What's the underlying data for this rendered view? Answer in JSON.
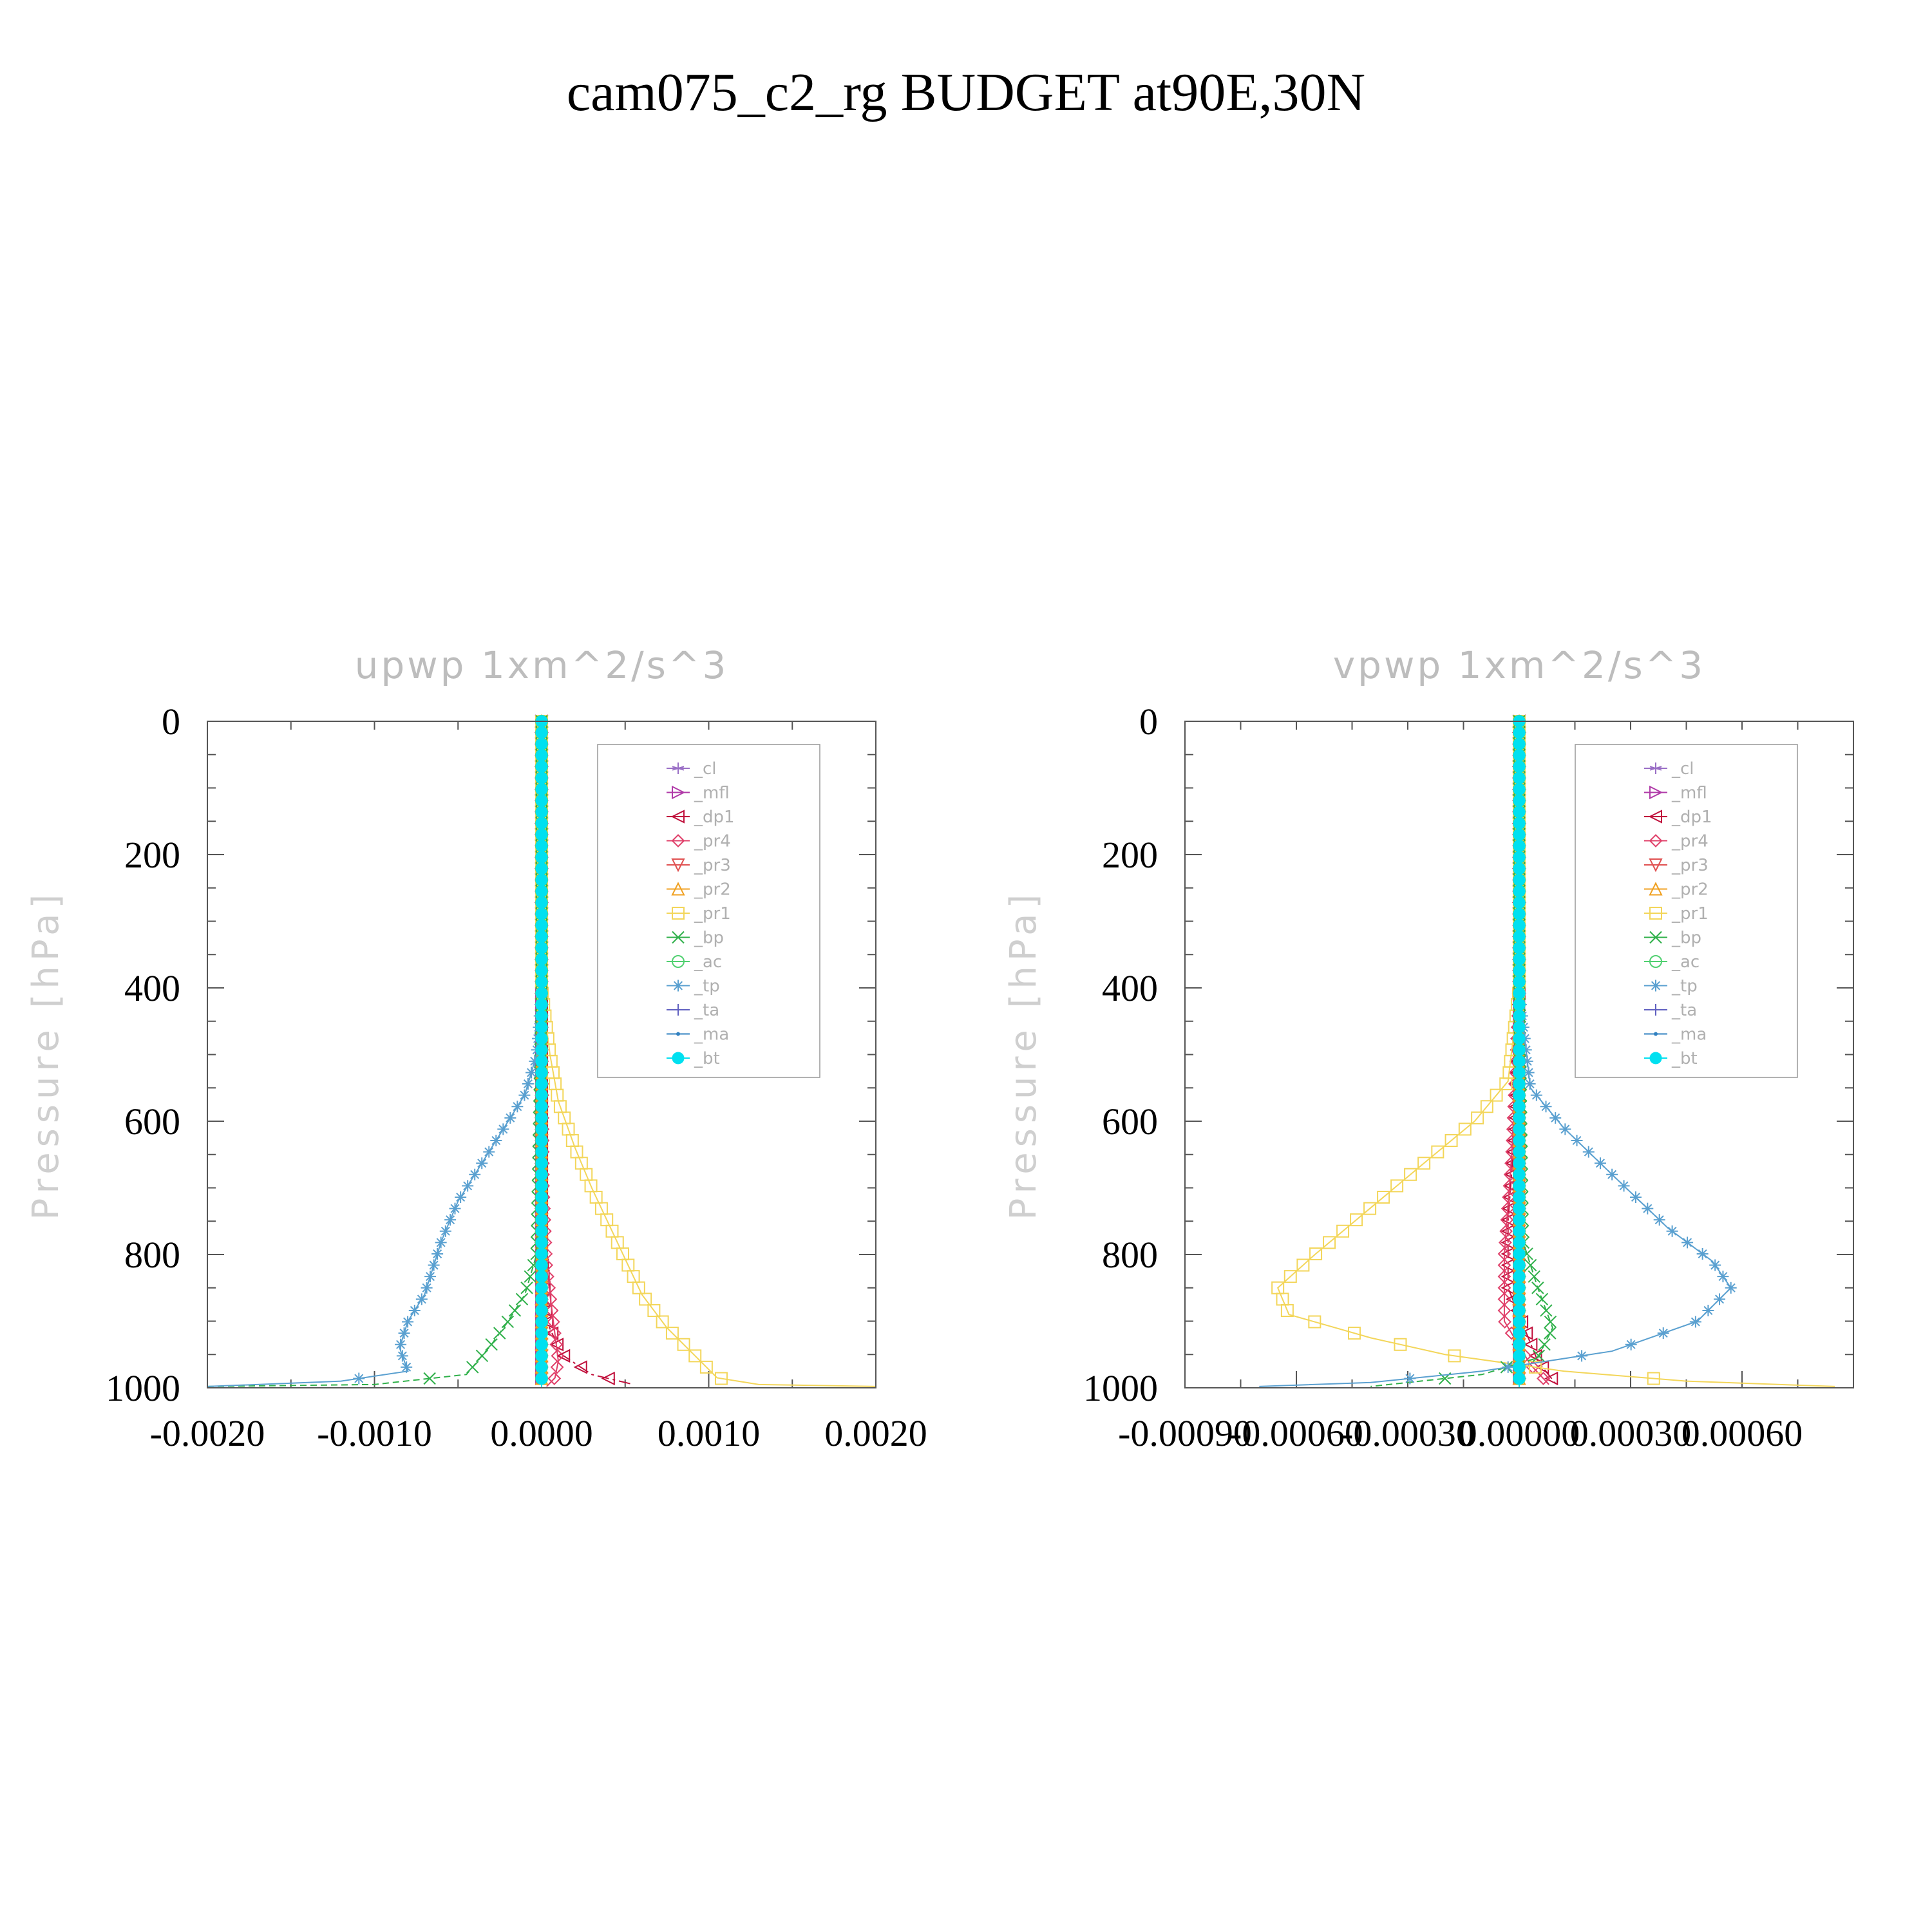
{
  "title": "cam075_c2_rg  BUDGET at90E,30N",
  "chart_data": [
    {
      "type": "line",
      "title": "upwp   1xm^2/s^3",
      "ylabel": "Pressure [hPa]",
      "xlabel": "",
      "xlim": [
        -0.002,
        0.002
      ],
      "ylim": [
        1000,
        0
      ],
      "xticks": [
        "-0.0020",
        "-0.0010",
        "0.0000",
        "0.0010",
        "0.0020"
      ],
      "xtick_values": [
        -0.002,
        -0.001,
        0.0,
        0.001,
        0.002
      ],
      "yticks": [
        "0",
        "200",
        "400",
        "600",
        "800",
        "1000"
      ],
      "ytick_values": [
        0,
        200,
        400,
        600,
        800,
        1000
      ],
      "legend_position": "top-right",
      "series": [
        {
          "name": "_cl",
          "color": "#9a6fc6",
          "marker": "star",
          "x": [
            0,
            0,
            0,
            0
          ],
          "y": [
            0,
            400,
            800,
            1000
          ]
        },
        {
          "name": "_mfl",
          "color": "#b03aa8",
          "marker": "tri-right",
          "x": [
            0,
            0,
            0,
            0
          ],
          "y": [
            0,
            400,
            800,
            1000
          ]
        },
        {
          "name": "_dp1",
          "color": "#c0103c",
          "marker": "tri-left",
          "x": [
            0,
            0,
            0,
            0,
            0,
            3e-05,
            0.00012,
            0.0003,
            0.00055
          ],
          "y": [
            0,
            200,
            400,
            600,
            800,
            900,
            950,
            980,
            995
          ]
        },
        {
          "name": "_pr4",
          "color": "#e0406a",
          "marker": "diamond",
          "x": [
            0,
            0,
            1e-05,
            3e-05,
            7e-05,
            0.0001,
            8e-05,
            3e-05
          ],
          "y": [
            0,
            400,
            700,
            820,
            900,
            960,
            985,
            998
          ]
        },
        {
          "name": "_pr3",
          "color": "#e05050",
          "marker": "tri-down",
          "x": [
            0,
            0,
            0,
            0
          ],
          "y": [
            0,
            400,
            800,
            1000
          ]
        },
        {
          "name": "_pr2",
          "color": "#f0a020",
          "marker": "tri-up",
          "x": [
            0,
            0,
            0,
            0
          ],
          "y": [
            0,
            400,
            800,
            1000
          ]
        },
        {
          "name": "_pr1",
          "color": "#f3d65a",
          "marker": "square",
          "x": [
            0,
            0,
            5e-05,
            0.0001,
            0.0002,
            0.0003,
            0.00045,
            0.0006,
            0.00075,
            0.00095,
            0.00105,
            0.0013,
            0.002
          ],
          "y": [
            0,
            400,
            500,
            570,
            640,
            700,
            780,
            860,
            910,
            960,
            985,
            995,
            998
          ]
        },
        {
          "name": "_bp",
          "color": "#2fb04a",
          "marker": "x",
          "x": [
            0,
            0,
            -3e-05,
            -0.0001,
            -0.0002,
            -0.0003,
            -0.00045,
            -0.001,
            -0.002
          ],
          "y": [
            0,
            400,
            800,
            860,
            900,
            935,
            980,
            995,
            998
          ]
        },
        {
          "name": "_ac",
          "color": "#50d070",
          "marker": "circle",
          "x": [
            0,
            0,
            0,
            0
          ],
          "y": [
            0,
            400,
            800,
            1000
          ]
        },
        {
          "name": "_tp",
          "color": "#5aa0d0",
          "marker": "asterisk",
          "x": [
            0,
            0,
            -3e-05,
            -0.0001,
            -0.00025,
            -0.00035,
            -0.0005,
            -0.0006,
            -0.00065,
            -0.0007,
            -0.0008,
            -0.00085,
            -0.0008,
            -0.0012,
            -0.002
          ],
          "y": [
            0,
            400,
            500,
            560,
            620,
            660,
            720,
            780,
            820,
            860,
            900,
            940,
            975,
            990,
            998
          ]
        },
        {
          "name": "_ta",
          "color": "#6060c0",
          "marker": "plus",
          "x": [
            0,
            0,
            0,
            0
          ],
          "y": [
            0,
            400,
            800,
            1000
          ]
        },
        {
          "name": "_ma",
          "color": "#3080c0",
          "marker": "dot",
          "x": [
            0,
            0,
            0,
            0
          ],
          "y": [
            0,
            400,
            800,
            1000
          ]
        },
        {
          "name": "_bt",
          "color": "#00e0f0",
          "marker": "filled-circle",
          "x": [
            0,
            0,
            0,
            0
          ],
          "y": [
            0,
            400,
            800,
            1000
          ]
        }
      ]
    },
    {
      "type": "line",
      "title": "vpwp   1xm^2/s^3",
      "ylabel": "Pressure [hPa]",
      "xlabel": "",
      "xlim": [
        -0.0009,
        0.0009
      ],
      "ylim": [
        1000,
        0
      ],
      "xticks": [
        "-0.00090",
        "-0.00060",
        "-0.00030",
        "0.00000",
        "0.00030",
        "0.00060"
      ],
      "xtick_values": [
        -0.0009,
        -0.0006,
        -0.0003,
        0.0,
        0.0003,
        0.0006
      ],
      "yticks": [
        "0",
        "200",
        "400",
        "600",
        "800",
        "1000"
      ],
      "ytick_values": [
        0,
        200,
        400,
        600,
        800,
        1000
      ],
      "legend_position": "top-right",
      "series": [
        {
          "name": "_cl",
          "color": "#9a6fc6",
          "marker": "star",
          "x": [
            0,
            0,
            0,
            0
          ],
          "y": [
            0,
            400,
            800,
            1000
          ]
        },
        {
          "name": "_mfl",
          "color": "#b03aa8",
          "marker": "tri-right",
          "x": [
            0,
            0,
            0,
            0
          ],
          "y": [
            0,
            400,
            800,
            1000
          ]
        },
        {
          "name": "_dp1",
          "color": "#c0103c",
          "marker": "tri-left",
          "x": [
            0,
            0,
            -1e-05,
            -3e-05,
            -3e-05,
            5e-05,
            0.0001
          ],
          "y": [
            0,
            400,
            600,
            750,
            850,
            960,
            995
          ]
        },
        {
          "name": "_pr4",
          "color": "#e0406a",
          "marker": "diamond",
          "x": [
            0,
            0,
            -2e-05,
            -4e-05,
            -4e-05,
            3e-05,
            8e-05
          ],
          "y": [
            0,
            400,
            650,
            800,
            900,
            965,
            995
          ]
        },
        {
          "name": "_pr3",
          "color": "#e05050",
          "marker": "tri-down",
          "x": [
            0,
            0,
            0,
            0
          ],
          "y": [
            0,
            400,
            800,
            1000
          ]
        },
        {
          "name": "_pr2",
          "color": "#f0a020",
          "marker": "tri-up",
          "x": [
            0,
            0,
            0,
            0
          ],
          "y": [
            0,
            400,
            800,
            1000
          ]
        },
        {
          "name": "_pr1",
          "color": "#f3d65a",
          "marker": "square",
          "x": [
            0,
            0,
            -3e-05,
            -0.00012,
            -0.00025,
            -0.0004,
            -0.00055,
            -0.00065,
            -0.00062,
            -0.0004,
            -0.0002,
            0.00012,
            0.00045,
            0.00085
          ],
          "y": [
            0,
            400,
            540,
            600,
            660,
            730,
            800,
            850,
            890,
            925,
            950,
            975,
            990,
            998
          ]
        },
        {
          "name": "_bp",
          "color": "#2fb04a",
          "marker": "x",
          "x": [
            0,
            0,
            1e-05,
            5e-05,
            9e-05,
            5e-05,
            -0.0001,
            -0.0004
          ],
          "y": [
            0,
            400,
            780,
            850,
            910,
            955,
            980,
            998
          ]
        },
        {
          "name": "_ac",
          "color": "#50d070",
          "marker": "circle",
          "x": [
            0,
            0,
            0,
            0
          ],
          "y": [
            0,
            400,
            800,
            1000
          ]
        },
        {
          "name": "_tp",
          "color": "#5aa0d0",
          "marker": "asterisk",
          "x": [
            0,
            0,
            3e-05,
            0.00012,
            0.00025,
            0.0004,
            0.00052,
            0.00057,
            0.00048,
            0.00025,
            -0.0001,
            -0.0004,
            -0.0007
          ],
          "y": [
            0,
            400,
            550,
            610,
            680,
            760,
            810,
            850,
            900,
            945,
            975,
            992,
            998
          ]
        },
        {
          "name": "_ta",
          "color": "#6060c0",
          "marker": "plus",
          "x": [
            0,
            0,
            0,
            0
          ],
          "y": [
            0,
            400,
            800,
            1000
          ]
        },
        {
          "name": "_ma",
          "color": "#3080c0",
          "marker": "dot",
          "x": [
            0,
            0,
            0,
            0
          ],
          "y": [
            0,
            400,
            800,
            1000
          ]
        },
        {
          "name": "_bt",
          "color": "#00e0f0",
          "marker": "filled-circle",
          "x": [
            0,
            0,
            0,
            0
          ],
          "y": [
            0,
            400,
            800,
            1000
          ]
        }
      ]
    }
  ]
}
